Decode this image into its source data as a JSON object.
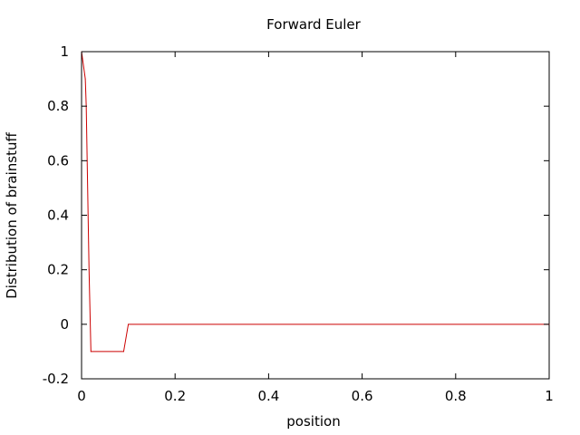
{
  "chart_data": {
    "type": "line",
    "title": "Forward Euler",
    "xlabel": "position",
    "ylabel": "Distribution of brainstuff",
    "xlim": [
      0,
      1
    ],
    "ylim": [
      -0.2,
      1
    ],
    "grid": false,
    "x_ticks": [
      {
        "value": 0,
        "label": "0"
      },
      {
        "value": 0.2,
        "label": "0.2"
      },
      {
        "value": 0.4,
        "label": "0.4"
      },
      {
        "value": 0.6,
        "label": "0.6"
      },
      {
        "value": 0.8,
        "label": "0.8"
      },
      {
        "value": 1,
        "label": "1"
      }
    ],
    "y_ticks": [
      {
        "value": -0.2,
        "label": "-0.2"
      },
      {
        "value": 0,
        "label": "0"
      },
      {
        "value": 0.2,
        "label": "0.2"
      },
      {
        "value": 0.4,
        "label": "0.4"
      },
      {
        "value": 0.6,
        "label": "0.6"
      },
      {
        "value": 0.8,
        "label": "0.8"
      },
      {
        "value": 1,
        "label": "1"
      }
    ],
    "series": [
      {
        "name": "Forward Euler",
        "color": "#cc0000",
        "x": [
          0,
          0.008,
          0.01,
          0.012,
          0.014,
          0.016,
          0.02,
          0.09,
          0.1,
          1
        ],
        "y": [
          1,
          0.9,
          0.8,
          0.6,
          0.4,
          0.2,
          -0.1,
          -0.1,
          0,
          0
        ]
      }
    ]
  }
}
